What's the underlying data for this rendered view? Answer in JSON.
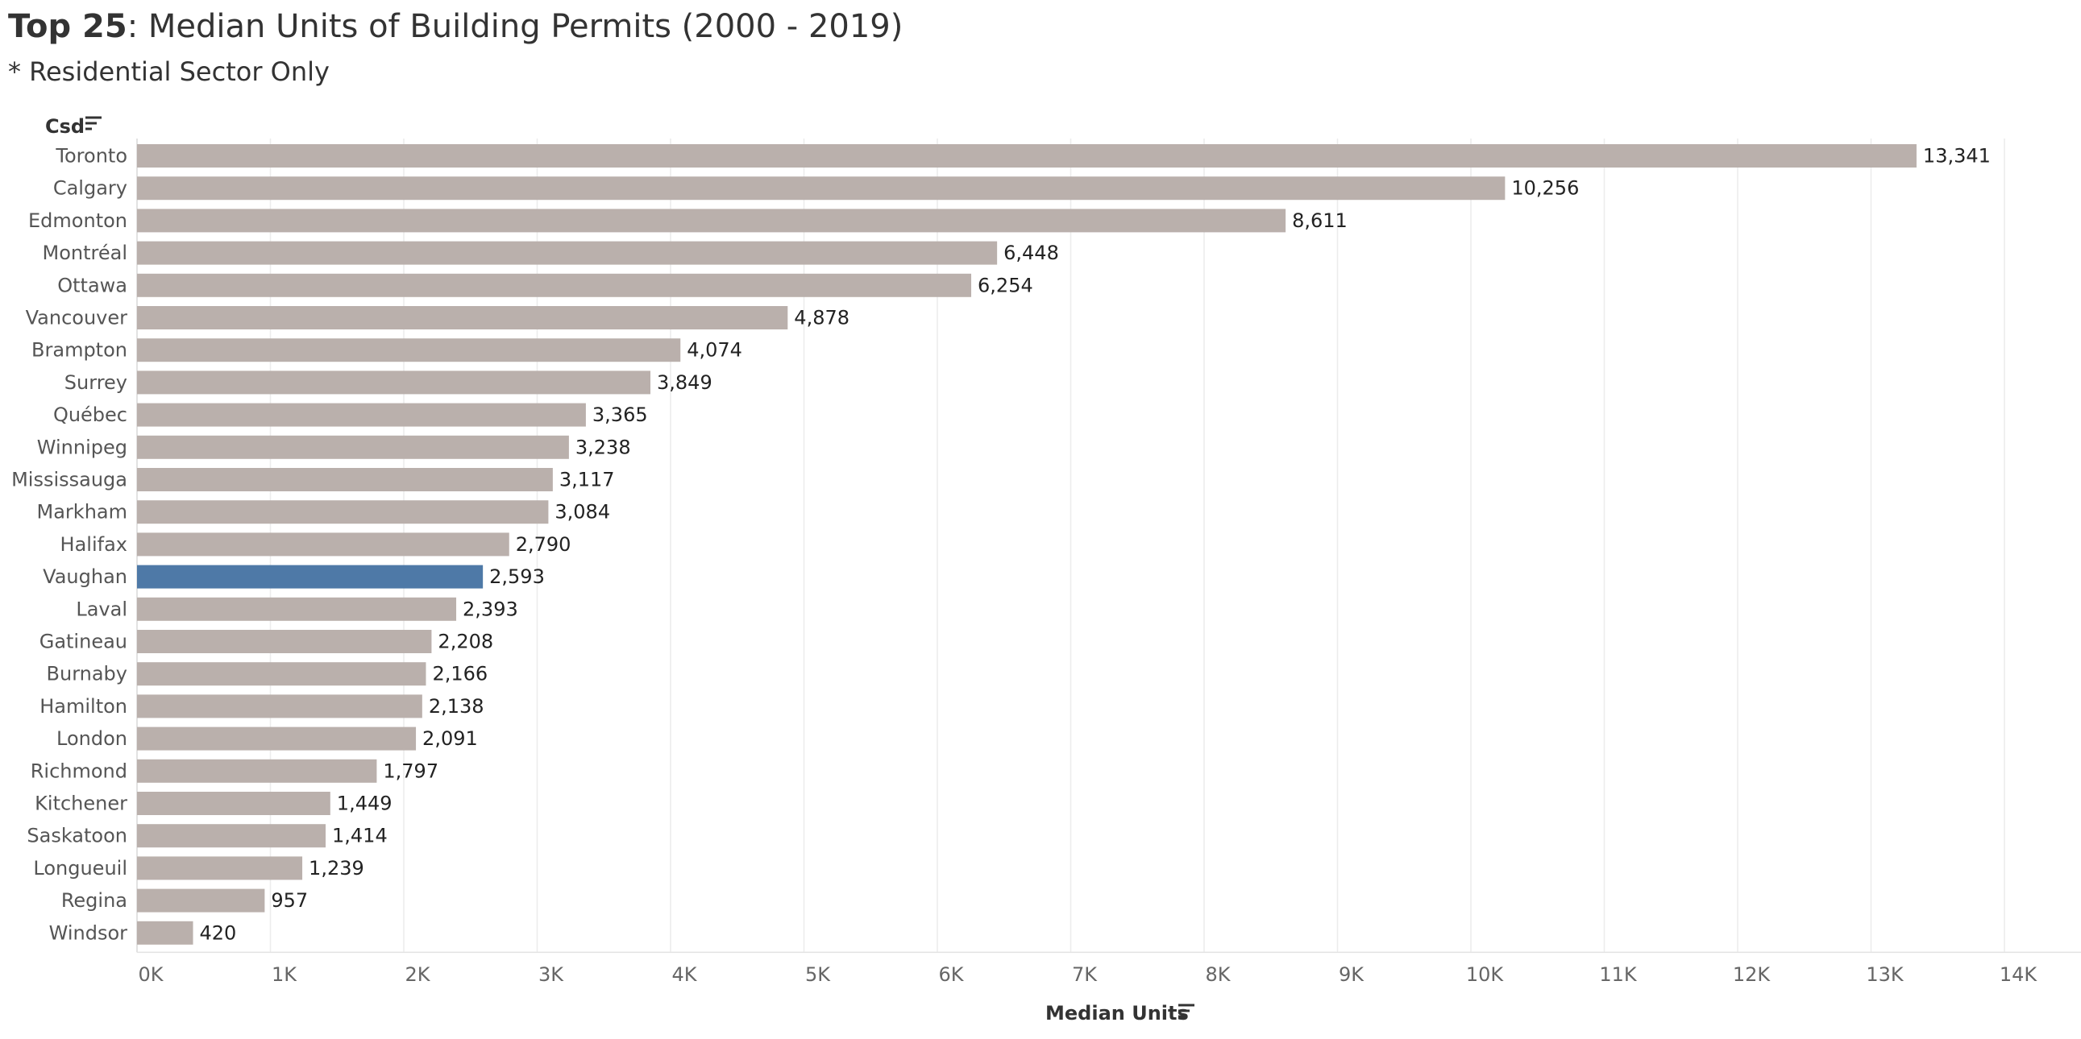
{
  "header": {
    "title_bold": "Top 25",
    "title_rest": ": Median Units of Building Permits (2000 - 2019)",
    "subtitle": "* Residential Sector Only"
  },
  "icons": {
    "sort": "sort-descending-icon"
  },
  "chart_data": {
    "type": "bar",
    "orientation": "horizontal",
    "categories": [
      "Toronto",
      "Calgary",
      "Edmonton",
      "Montréal",
      "Ottawa",
      "Vancouver",
      "Brampton",
      "Surrey",
      "Québec",
      "Winnipeg",
      "Mississauga",
      "Markham",
      "Halifax",
      "Vaughan",
      "Laval",
      "Gatineau",
      "Burnaby",
      "Hamilton",
      "London",
      "Richmond",
      "Kitchener",
      "Saskatoon",
      "Longueuil",
      "Regina",
      "Windsor"
    ],
    "values": [
      13341,
      10256,
      8611,
      6448,
      6254,
      4878,
      4074,
      3849,
      3365,
      3238,
      3117,
      3084,
      2790,
      2593,
      2393,
      2208,
      2166,
      2138,
      2091,
      1797,
      1449,
      1414,
      1239,
      957,
      420
    ],
    "value_labels": [
      "13,341",
      "10,256",
      "8,611",
      "6,448",
      "6,254",
      "4,878",
      "4,074",
      "3,849",
      "3,365",
      "3,238",
      "3,117",
      "3,084",
      "2,790",
      "2,593",
      "2,393",
      "2,208",
      "2,166",
      "2,138",
      "2,091",
      "1,797",
      "1,449",
      "1,414",
      "1,239",
      "957",
      "420"
    ],
    "highlight": "Vaughan",
    "bar_color": "#bab0ac",
    "highlight_color": "#4e79a7",
    "xlabel": "Median Units",
    "ylabel": "Csd",
    "xlim": [
      0,
      14000
    ],
    "ticks": [
      0,
      1000,
      2000,
      3000,
      4000,
      5000,
      6000,
      7000,
      8000,
      9000,
      10000,
      11000,
      12000,
      13000,
      14000
    ],
    "tick_labels": [
      "0K",
      "1K",
      "2K",
      "3K",
      "4K",
      "5K",
      "6K",
      "7K",
      "8K",
      "9K",
      "10K",
      "11K",
      "12K",
      "13K",
      "14K"
    ],
    "grid": true,
    "legend": "none"
  }
}
